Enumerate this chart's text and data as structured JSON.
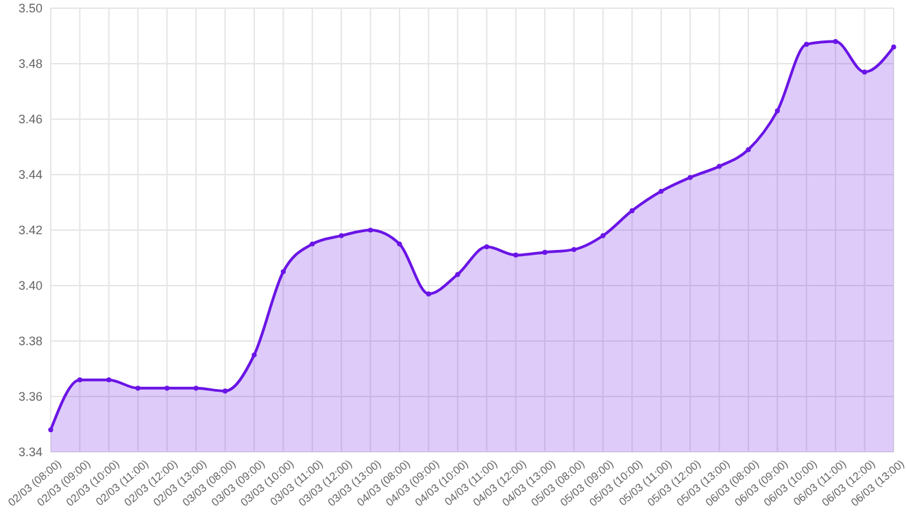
{
  "chart_data": {
    "type": "area",
    "categories": [
      "02/03 (08:00)",
      "02/03 (09:00)",
      "02/03 (10:00)",
      "02/03 (11:00)",
      "02/03 (12:00)",
      "02/03 (13:00)",
      "03/03 (08:00)",
      "03/03 (09:00)",
      "03/03 (10:00)",
      "03/03 (11:00)",
      "03/03 (12:00)",
      "03/03 (13:00)",
      "04/03 (08:00)",
      "04/03 (09:00)",
      "04/03 (10:00)",
      "04/03 (11:00)",
      "04/03 (12:00)",
      "04/03 (13:00)",
      "05/03 (08:00)",
      "05/03 (09:00)",
      "05/03 (10:00)",
      "05/03 (11:00)",
      "05/03 (12:00)",
      "05/03 (13:00)",
      "06/03 (08:00)",
      "06/03 (09:00)",
      "06/03 (10:00)",
      "06/03 (11:00)",
      "06/03 (12:00)",
      "06/03 (13:00)"
    ],
    "series": [
      {
        "color": "#6a14e6",
        "values": [
          3.348,
          3.366,
          3.366,
          3.363,
          3.363,
          3.363,
          3.362,
          3.375,
          3.405,
          3.415,
          3.418,
          3.42,
          3.415,
          3.397,
          3.404,
          3.414,
          3.411,
          3.412,
          3.413,
          3.418,
          3.427,
          3.434,
          3.439,
          3.443,
          3.449,
          3.463,
          3.487,
          3.488,
          3.477,
          3.486
        ]
      }
    ],
    "ylim": [
      3.34,
      3.5
    ],
    "yticks": [
      3.34,
      3.36,
      3.38,
      {
        "value": 3.4,
        "label": "3.40"
      },
      3.42,
      3.44,
      3.46,
      3.48,
      {
        "value": 3.5,
        "label": "3.50"
      }
    ],
    "grid": true,
    "marker": "circle",
    "line_style": "solid"
  }
}
